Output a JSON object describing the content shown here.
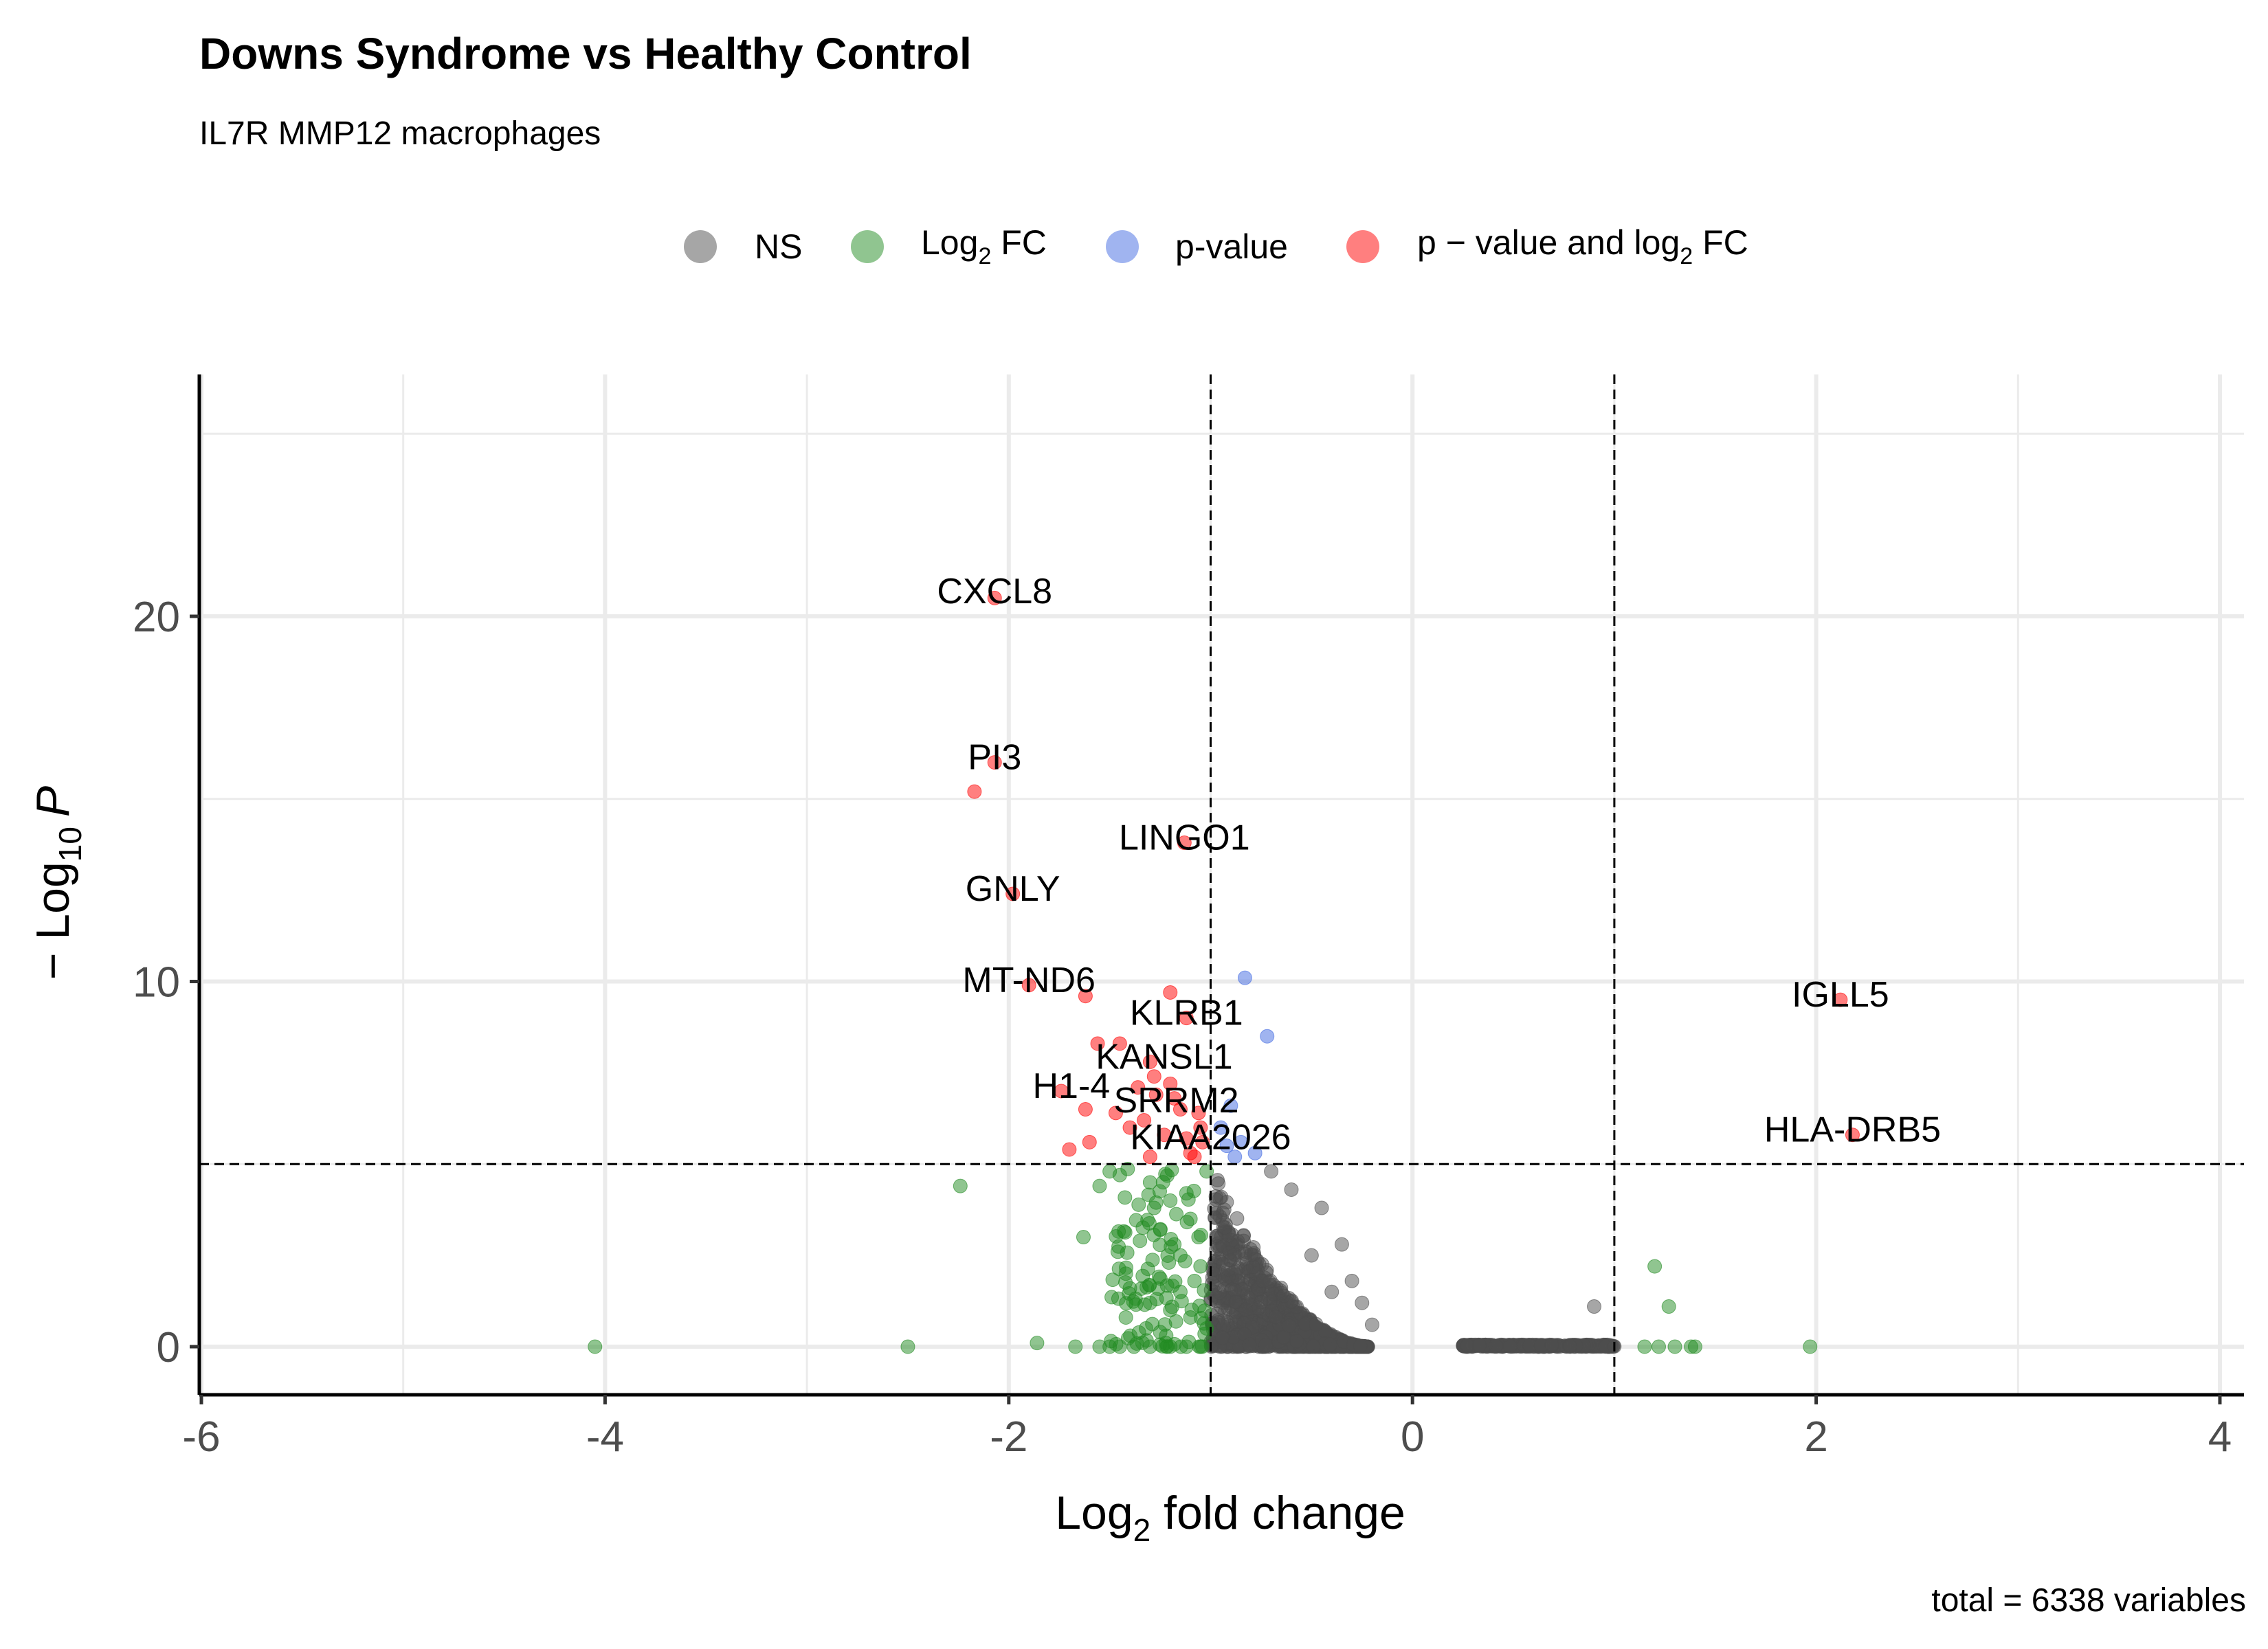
{
  "chart_data": {
    "type": "scatter",
    "title": "Downs Syndrome vs Healthy Control",
    "subtitle": "IL7R MMP12 macrophages",
    "xlabel": "Log2 fold change",
    "xlabel_base": "Log",
    "xlabel_sub": "2",
    "xlabel_rest": " fold change",
    "ylabel_prefix": "− Log",
    "ylabel_sub": "10",
    "ylabel_italic": "P",
    "caption": "total = 6338 variables",
    "xlim": [
      -6,
      4
    ],
    "ylim": [
      0,
      25
    ],
    "x_ticks": [
      -6,
      -4,
      -2,
      0,
      2,
      4
    ],
    "x_tick_labels": [
      "-6",
      "-4",
      "-2",
      "0",
      "2",
      "4"
    ],
    "y_ticks": [
      0,
      10,
      20
    ],
    "y_tick_labels": [
      "0",
      "10",
      "20"
    ],
    "fc_cutoff": 1,
    "p_cutoff_log": 5,
    "grid": true,
    "legend": {
      "position": "top",
      "items": [
        {
          "key": "NS",
          "text": "NS",
          "color": "#4d4d4d"
        },
        {
          "key": "fc",
          "text": "Log",
          "sub": "2",
          "after": " FC",
          "color": "#228b22"
        },
        {
          "key": "p",
          "text": "p-value",
          "color": "#4169e1"
        },
        {
          "key": "both",
          "text": "p − value and log",
          "sub": "2",
          "after": " FC",
          "color": "#ff0000"
        }
      ]
    },
    "series": [
      {
        "name": "p − value and log2 FC",
        "color": "#ff0000",
        "points": [
          [
            -2.07,
            20.5
          ],
          [
            -2.07,
            16.0
          ],
          [
            -2.17,
            15.2
          ],
          [
            -1.13,
            13.8
          ],
          [
            -1.98,
            12.4
          ],
          [
            -1.9,
            9.9
          ],
          [
            -1.62,
            9.6
          ],
          [
            -1.2,
            9.7
          ],
          [
            -1.12,
            9.0
          ],
          [
            -1.45,
            8.3
          ],
          [
            -1.3,
            7.8
          ],
          [
            -1.2,
            7.2
          ],
          [
            -1.74,
            7.0
          ],
          [
            -1.62,
            6.5
          ],
          [
            -1.47,
            6.4
          ],
          [
            -1.33,
            6.2
          ],
          [
            -1.15,
            6.5
          ],
          [
            -1.05,
            6.0
          ],
          [
            -1.6,
            5.6
          ],
          [
            -1.7,
            5.4
          ],
          [
            -1.3,
            5.2
          ],
          [
            -1.1,
            5.3
          ],
          [
            -1.56,
            8.3
          ],
          [
            -1.28,
            7.4
          ],
          [
            -1.06,
            6.4
          ],
          [
            -1.23,
            5.8
          ],
          [
            -1.08,
            5.2
          ],
          [
            -1.4,
            6.0
          ],
          [
            -1.18,
            6.8
          ],
          [
            -1.04,
            5.6
          ],
          [
            -1.27,
            6.9
          ],
          [
            -1.12,
            5.7
          ],
          [
            -1.36,
            7.1
          ],
          [
            2.12,
            9.5
          ],
          [
            2.18,
            5.8
          ]
        ]
      },
      {
        "name": "p-value",
        "color": "#4169e1",
        "points": [
          [
            -0.83,
            10.1
          ],
          [
            -0.72,
            8.5
          ],
          [
            -0.9,
            6.6
          ],
          [
            -0.95,
            6.0
          ],
          [
            -0.85,
            5.6
          ],
          [
            -0.78,
            5.3
          ],
          [
            -0.92,
            5.5
          ],
          [
            -0.88,
            5.2
          ]
        ]
      },
      {
        "name": "Log2 FC",
        "color": "#228b22",
        "points": [
          [
            -4.05,
            0.0
          ],
          [
            -2.5,
            0.0
          ],
          [
            -2.24,
            4.4
          ],
          [
            -1.86,
            0.1
          ],
          [
            -1.67,
            0.0
          ],
          [
            -1.55,
            0.0
          ],
          [
            -1.5,
            0.0
          ],
          [
            -1.45,
            0.0
          ],
          [
            -1.38,
            0.0
          ],
          [
            -1.3,
            0.0
          ],
          [
            -1.2,
            0.0
          ],
          [
            -1.12,
            0.0
          ],
          [
            -1.05,
            0.0
          ],
          [
            -1.63,
            3.0
          ],
          [
            -1.46,
            2.6
          ],
          [
            -1.42,
            2.0
          ],
          [
            -1.55,
            4.4
          ],
          [
            -1.5,
            4.8
          ],
          [
            -1.45,
            4.7
          ],
          [
            -1.3,
            4.5
          ],
          [
            -1.2,
            4.0
          ],
          [
            -1.1,
            3.5
          ],
          [
            -1.25,
            3.2
          ],
          [
            -1.35,
            2.9
          ],
          [
            -1.15,
            2.5
          ],
          [
            -1.05,
            2.2
          ],
          [
            -1.4,
            1.6
          ],
          [
            -1.3,
            1.2
          ],
          [
            -1.2,
            1.0
          ],
          [
            -1.1,
            0.8
          ],
          [
            -1.42,
            0.8
          ],
          [
            -1.32,
            0.5
          ],
          [
            -1.22,
            0.3
          ],
          [
            -1.08,
            1.8
          ],
          [
            -1.18,
            2.8
          ],
          [
            -1.28,
            3.8
          ],
          [
            -1.12,
            4.2
          ],
          [
            -1.02,
            4.8
          ],
          [
            -1.06,
            3.0
          ],
          [
            -1.15,
            1.5
          ],
          [
            -1.02,
            0.5
          ],
          [
            -1.25,
            0.4
          ],
          [
            1.2,
            2.2
          ],
          [
            1.27,
            1.1
          ],
          [
            1.15,
            0.0
          ],
          [
            1.22,
            0.0
          ],
          [
            1.3,
            0.0
          ],
          [
            1.38,
            0.0
          ],
          [
            1.4,
            0.0
          ],
          [
            1.97,
            0.0
          ]
        ]
      },
      {
        "name": "NS",
        "color": "#4d4d4d",
        "points": [
          [
            0.9,
            1.1
          ],
          [
            -0.7,
            4.8
          ],
          [
            -0.6,
            4.3
          ],
          [
            -0.45,
            3.8
          ],
          [
            -0.35,
            2.8
          ],
          [
            -0.5,
            2.5
          ],
          [
            -0.3,
            1.8
          ],
          [
            -0.4,
            1.5
          ],
          [
            -0.25,
            1.2
          ],
          [
            -0.2,
            0.6
          ]
        ]
      }
    ],
    "ns_cloud": {
      "description": "dense cluster of non-significant points",
      "x_range_left": [
        -1.0,
        -0.22
      ],
      "x_range_right": [
        0.25,
        1.0
      ],
      "count_shown": 1400
    },
    "labels": [
      {
        "gene": "CXCL8",
        "x": -2.07,
        "y": 20.5
      },
      {
        "gene": "PI3",
        "x": -2.07,
        "y": 16.0
      },
      {
        "gene": "LINGO1",
        "x": -1.13,
        "y": 13.8
      },
      {
        "gene": "GNLY",
        "x": -1.98,
        "y": 12.4
      },
      {
        "gene": "MT-ND6",
        "x": -1.9,
        "y": 9.9
      },
      {
        "gene": "KLRB1",
        "x": -1.12,
        "y": 9.0
      },
      {
        "gene": "IGLL5",
        "x": 2.12,
        "y": 9.5
      },
      {
        "gene": "KANSL1",
        "x": -1.3,
        "y": 7.8
      },
      {
        "gene": "H1-4",
        "x": -1.74,
        "y": 7.0
      },
      {
        "gene": "SRRM2",
        "x": -1.2,
        "y": 6.6
      },
      {
        "gene": "HLA-DRB5",
        "x": 2.18,
        "y": 5.8
      },
      {
        "gene": "KIAA2026",
        "x": -1.05,
        "y": 5.6
      }
    ]
  }
}
